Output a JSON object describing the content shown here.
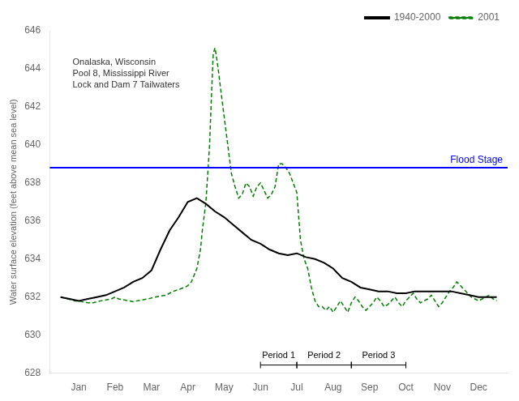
{
  "chart_data": {
    "type": "line",
    "ylabel": "Water surface elevation (feet above mean sea level)",
    "xlim": [
      -0.3,
      12.3
    ],
    "xticks": [
      {
        "value": 0.5,
        "label": "Jan"
      },
      {
        "value": 1.5,
        "label": "Feb"
      },
      {
        "value": 2.5,
        "label": "Mar"
      },
      {
        "value": 3.5,
        "label": "Apr"
      },
      {
        "value": 4.5,
        "label": "May"
      },
      {
        "value": 5.5,
        "label": "Jun"
      },
      {
        "value": 6.5,
        "label": "Jul"
      },
      {
        "value": 7.5,
        "label": "Aug"
      },
      {
        "value": 8.5,
        "label": "Sep"
      },
      {
        "value": 9.5,
        "label": "Oct"
      },
      {
        "value": 10.5,
        "label": "Nov"
      },
      {
        "value": 11.5,
        "label": "Dec"
      }
    ],
    "ylim": [
      628,
      646
    ],
    "yticks": [
      628,
      630,
      632,
      634,
      636,
      638,
      640,
      642,
      644,
      646
    ],
    "grid": false,
    "legend": "upper right",
    "series": [
      {
        "name": "1940-2000",
        "color": "#000000",
        "line_style": "solid",
        "x": [
          0,
          0.25,
          0.5,
          0.75,
          1.0,
          1.25,
          1.5,
          1.75,
          2.0,
          2.25,
          2.5,
          2.75,
          3.0,
          3.25,
          3.5,
          3.75,
          4.0,
          4.25,
          4.5,
          4.75,
          5.0,
          5.25,
          5.5,
          5.75,
          6.0,
          6.25,
          6.5,
          6.75,
          7.0,
          7.25,
          7.5,
          7.75,
          8.0,
          8.25,
          8.5,
          8.75,
          9.0,
          9.25,
          9.5,
          9.75,
          10.0,
          10.25,
          10.5,
          10.75,
          11.0,
          11.25,
          11.5,
          11.75,
          12.0
        ],
        "values": [
          632.0,
          631.9,
          631.8,
          631.9,
          632.0,
          632.1,
          632.3,
          632.5,
          632.8,
          633.0,
          633.4,
          634.5,
          635.5,
          636.2,
          637.0,
          637.2,
          636.9,
          636.5,
          636.2,
          635.8,
          635.4,
          635.0,
          634.8,
          634.5,
          634.3,
          634.2,
          634.3,
          634.1,
          634.0,
          633.8,
          633.5,
          633.0,
          632.8,
          632.5,
          632.4,
          632.3,
          632.3,
          632.2,
          632.2,
          632.3,
          632.3,
          632.3,
          632.3,
          632.3,
          632.2,
          632.1,
          632.0,
          632.0,
          632.0
        ]
      },
      {
        "name": "2001",
        "color": "#008000",
        "line_style": "dashed",
        "x": [
          0,
          0.1,
          0.2,
          0.3,
          0.4,
          0.5,
          0.6,
          0.75,
          0.9,
          1.0,
          1.1,
          1.25,
          1.4,
          1.5,
          1.6,
          1.75,
          1.9,
          2.0,
          2.1,
          2.25,
          2.4,
          2.5,
          2.6,
          2.75,
          2.9,
          3.0,
          3.1,
          3.25,
          3.4,
          3.5,
          3.6,
          3.75,
          3.85,
          3.9,
          4.0,
          4.1,
          4.15,
          4.2,
          4.25,
          4.3,
          4.35,
          4.4,
          4.5,
          4.6,
          4.7,
          4.8,
          4.9,
          5.0,
          5.1,
          5.2,
          5.3,
          5.4,
          5.5,
          5.6,
          5.7,
          5.8,
          5.9,
          6.0,
          6.1,
          6.2,
          6.3,
          6.4,
          6.5,
          6.6,
          6.7,
          6.8,
          6.9,
          7.0,
          7.1,
          7.2,
          7.3,
          7.4,
          7.5,
          7.6,
          7.7,
          7.8,
          7.9,
          8.0,
          8.1,
          8.2,
          8.3,
          8.4,
          8.5,
          8.6,
          8.7,
          8.8,
          8.9,
          9.0,
          9.1,
          9.2,
          9.3,
          9.4,
          9.5,
          9.6,
          9.7,
          9.8,
          9.9,
          10.0,
          10.1,
          10.2,
          10.3,
          10.4,
          10.5,
          10.6,
          10.7,
          10.8,
          10.9,
          11.0,
          11.1,
          11.2,
          11.3,
          11.4,
          11.5,
          11.6,
          11.7,
          11.8,
          11.9,
          12.0
        ],
        "values": [
          632.0,
          631.95,
          631.9,
          631.85,
          631.8,
          631.8,
          631.75,
          631.7,
          631.7,
          631.75,
          631.8,
          631.85,
          631.9,
          632.0,
          631.9,
          631.85,
          631.8,
          631.75,
          631.8,
          631.85,
          631.9,
          631.95,
          632.0,
          632.05,
          632.1,
          632.2,
          632.3,
          632.4,
          632.5,
          632.6,
          632.8,
          633.5,
          634.5,
          635.5,
          637.0,
          640.0,
          642.5,
          644.8,
          645.1,
          644.5,
          643.8,
          643.0,
          641.5,
          640.0,
          638.5,
          637.8,
          637.2,
          637.4,
          638.0,
          637.8,
          637.3,
          637.8,
          638.0,
          637.6,
          637.2,
          637.4,
          637.8,
          639.0,
          639.0,
          638.8,
          638.5,
          638.0,
          637.5,
          635.0,
          634.0,
          633.5,
          632.5,
          631.8,
          631.5,
          631.5,
          631.3,
          631.5,
          631.2,
          631.5,
          631.8,
          631.5,
          631.2,
          631.7,
          632.0,
          631.8,
          631.5,
          631.3,
          631.5,
          631.7,
          632.0,
          631.8,
          631.5,
          631.6,
          631.8,
          632.0,
          631.7,
          631.5,
          631.8,
          632.0,
          632.2,
          631.9,
          631.7,
          631.8,
          631.9,
          632.1,
          631.8,
          631.5,
          631.7,
          632.0,
          632.3,
          632.5,
          632.8,
          632.6,
          632.4,
          632.2,
          632.0,
          631.9,
          631.8,
          631.9,
          632.0,
          632.1,
          631.9,
          631.8
        ]
      }
    ],
    "reference_lines": [
      {
        "y": 638.8,
        "label": "Flood Stage",
        "color": "#0000FF"
      }
    ],
    "annotation": "Onalaska, Wisconsin\nPool 8, Mississippi River\nLock and Dam 7 Tailwaters",
    "periods": [
      {
        "label": "Period 1",
        "range": [
          5.5,
          6.5
        ]
      },
      {
        "label": "Period 2",
        "range": [
          6.5,
          8.0
        ]
      },
      {
        "label": "Period 3",
        "range": [
          8.0,
          9.5
        ]
      }
    ]
  }
}
